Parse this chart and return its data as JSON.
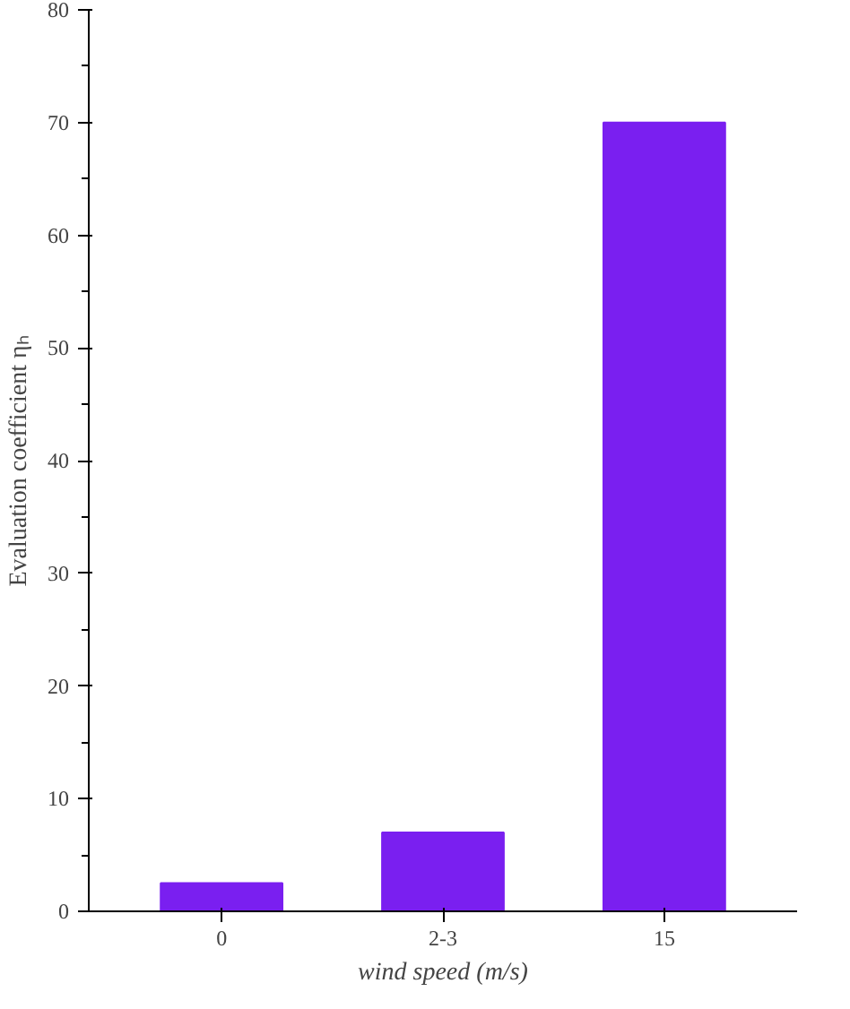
{
  "chart_data": {
    "type": "bar",
    "xlabel": "wind speed (m/s)",
    "ylabel": "Evaluation coefficient ηₕ",
    "categories": [
      "0",
      "2-3",
      "15"
    ],
    "values": [
      2.5,
      7,
      70
    ],
    "color": "#7a1ff0",
    "ylim": [
      0,
      80
    ],
    "yticks": [
      0,
      10,
      20,
      30,
      40,
      50,
      60,
      70,
      80
    ],
    "grid": false
  }
}
